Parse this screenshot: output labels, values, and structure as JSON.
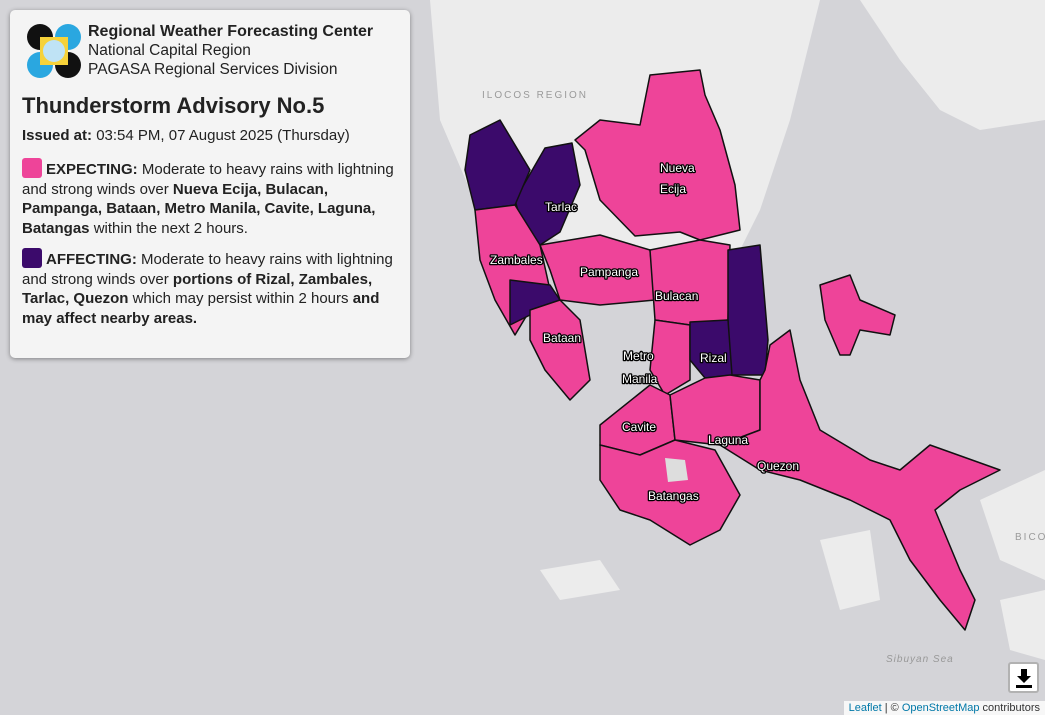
{
  "header": {
    "org": "Regional Weather Forecasting Center",
    "region": "National Capital Region",
    "division": "PAGASA Regional Services Division"
  },
  "advisory": {
    "title": "Thunderstorm Advisory No.5",
    "issued_label": "Issued at:",
    "issued_value": "03:54 PM, 07 August 2025 (Thursday)",
    "expecting": {
      "label": "EXPECTING:",
      "text1": "Moderate to heavy rains with lightning and strong winds over",
      "areas": "Nueva Ecija, Bulacan, Pampanga, Bataan, Metro Manila, Cavite, Laguna, Batangas",
      "text2": "within the next 2 hours.",
      "color": "#ee4499"
    },
    "affecting": {
      "label": "AFFECTING:",
      "text1": "Moderate to heavy rains with lightning and strong winds over",
      "areas": "portions of Rizal, Zambales, Tarlac, Quezon",
      "text2": "which may persist within 2 hours",
      "text3": "and may affect nearby areas.",
      "color": "#3b0a6b"
    }
  },
  "map": {
    "geo_labels": {
      "ilocos": "ILOCOS REGION",
      "bicol": "BICO",
      "sibuyan": "Sibuyan Sea"
    },
    "provinces": {
      "nueva_ecija_1": "Nueva",
      "nueva_ecija_2": "Ecija",
      "tarlac": "Tarlac",
      "zambales": "Zambales",
      "pampanga": "Pampanga",
      "bulacan": "Bulacan",
      "bataan": "Bataan",
      "metro_manila_1": "Metro",
      "metro_manila_2": "Manila",
      "rizal": "Rizal",
      "cavite": "Cavite",
      "laguna": "Laguna",
      "quezon": "Quezon",
      "batangas": "Batangas"
    },
    "download_icon": "download-icon",
    "attribution": {
      "leaflet": "Leaflet",
      "sep": " | © ",
      "osm": "OpenStreetMap",
      "suffix": " contributors"
    }
  }
}
